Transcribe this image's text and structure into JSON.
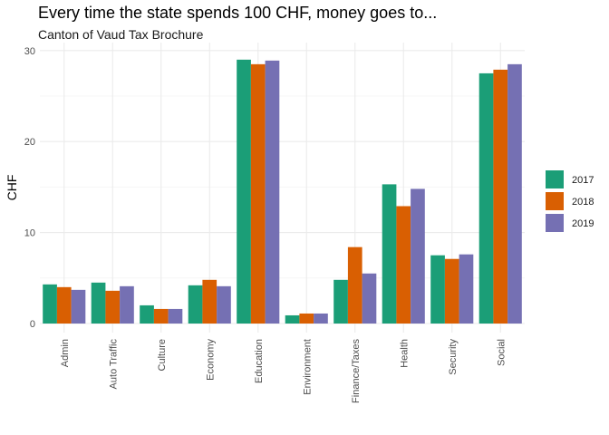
{
  "chart_data": {
    "type": "bar",
    "title": "Every time the state spends 100 CHF, money goes to...",
    "subtitle": "Canton of Vaud Tax Brochure",
    "xlabel": "",
    "ylabel": "CHF",
    "ylim": [
      0,
      30
    ],
    "yticks": [
      0,
      10,
      20,
      30
    ],
    "grid": true,
    "legend_position": "right",
    "categories": [
      "Admin",
      "Auto Traffic",
      "Culture",
      "Economy",
      "Education",
      "Environment",
      "Finance/Taxes",
      "Health",
      "Security",
      "Social"
    ],
    "series": [
      {
        "name": "2017",
        "color": "#1b9e77",
        "values": [
          4.3,
          4.5,
          2.0,
          4.2,
          29.0,
          0.9,
          4.8,
          15.3,
          7.5,
          27.5
        ]
      },
      {
        "name": "2018",
        "color": "#d95f02",
        "values": [
          4.0,
          3.6,
          1.6,
          4.8,
          28.5,
          1.1,
          8.4,
          12.9,
          7.1,
          27.9
        ]
      },
      {
        "name": "2019",
        "color": "#7570b3",
        "values": [
          3.7,
          4.1,
          1.6,
          4.1,
          28.9,
          1.1,
          5.5,
          14.8,
          7.6,
          28.5
        ]
      }
    ]
  }
}
